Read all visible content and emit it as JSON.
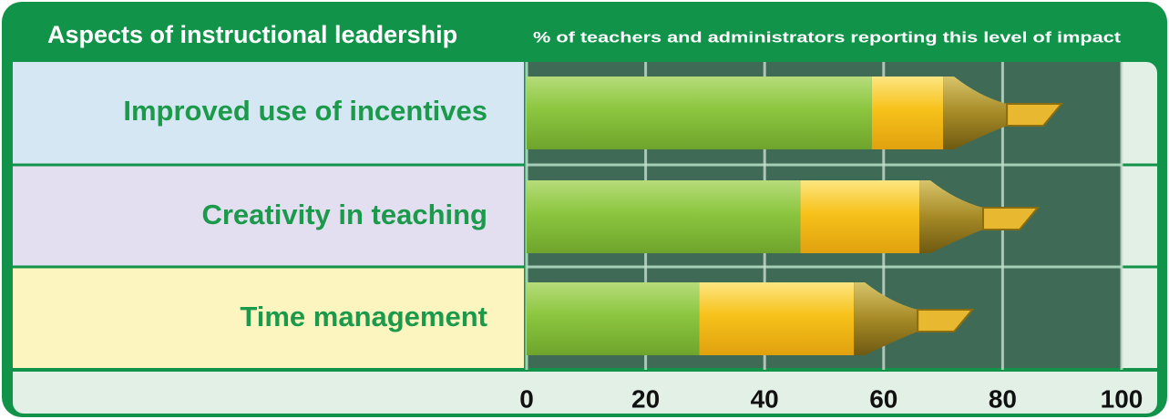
{
  "chart_data": {
    "type": "bar",
    "title": "Aspects of instructional leadership",
    "subtitle": "% of teachers and administrators reporting this level of impact",
    "categories": [
      "Improved use of incentives",
      "Creativity in teaching",
      "Time management"
    ],
    "series": [
      {
        "color": "#8cc63f",
        "values": [
          58,
          46,
          29
        ]
      },
      {
        "color": "#f7c21b",
        "values": [
          12,
          20,
          26
        ]
      }
    ],
    "xlim": [
      0,
      100
    ],
    "xticks": [
      0,
      20,
      40,
      60,
      80,
      100
    ],
    "grid": true
  }
}
